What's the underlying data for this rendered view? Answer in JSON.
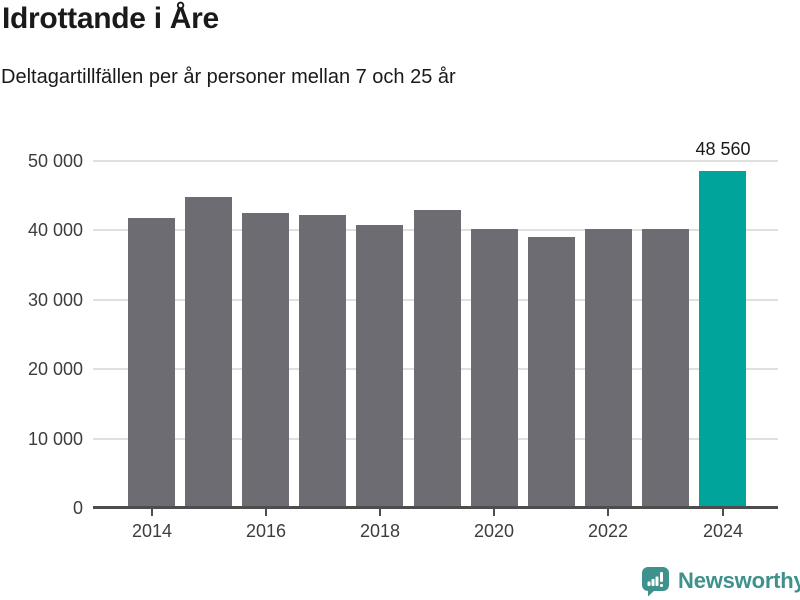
{
  "header": {
    "title": "Idrottande i Åre",
    "subtitle": "Deltagartillfällen per år personer mellan 7 och 25 år"
  },
  "chart_data": {
    "type": "bar",
    "title": "Idrottande i Åre",
    "subtitle": "Deltagartillfällen per år personer mellan 7 och 25 år",
    "categories": [
      "2014",
      "2015",
      "2016",
      "2017",
      "2018",
      "2019",
      "2020",
      "2021",
      "2022",
      "2023",
      "2024"
    ],
    "values": [
      41800,
      44800,
      42500,
      42200,
      40800,
      43000,
      40200,
      39000,
      40200,
      40200,
      48560
    ],
    "highlight_index": 10,
    "highlight_value_label": "48 560",
    "x_tick_labels": [
      "2014",
      "2016",
      "2018",
      "2020",
      "2022",
      "2024"
    ],
    "y_ticks": [
      0,
      10000,
      20000,
      30000,
      40000,
      50000
    ],
    "y_tick_labels": [
      "0",
      "10 000",
      "20 000",
      "30 000",
      "40 000",
      "50 000"
    ],
    "ylim": [
      0,
      50000
    ],
    "grid": true,
    "legend": "none",
    "bar_color": "#6c6c72",
    "highlight_color": "#00a49b",
    "gridline_color": "#e0e0e0",
    "axis_color": "#4d4d4d",
    "tick_label_color": "#3d3d3d",
    "value_label_color": "#1a1a1a"
  },
  "footer": {
    "brand": "Newsworthy",
    "brand_color": "#3e918c",
    "logo_icon": "bar-chart-speech-bubble-icon"
  }
}
